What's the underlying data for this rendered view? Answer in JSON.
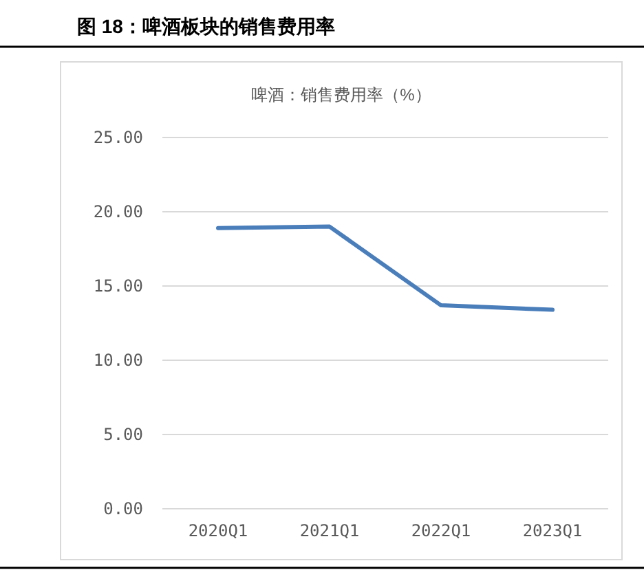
{
  "chart_data": {
    "type": "line",
    "title": "图 18：啤酒板块的销售费用率",
    "subtitle": "啤酒：销售费用率（%）",
    "categories": [
      "2020Q1",
      "2021Q1",
      "2022Q1",
      "2023Q1"
    ],
    "series": [
      {
        "color": "#4a7ebb",
        "values": [
          18.9,
          19.0,
          13.7,
          13.4
        ]
      }
    ],
    "ylim": [
      0,
      25
    ],
    "yticks": [
      {
        "value": 0,
        "label": "0.00"
      },
      {
        "value": 5,
        "label": "5.00"
      },
      {
        "value": 10,
        "label": "10.00"
      },
      {
        "value": 15,
        "label": "15.00"
      },
      {
        "value": 20,
        "label": "20.00"
      },
      {
        "value": 25,
        "label": "25.00"
      }
    ],
    "grid": "y",
    "marker": "none",
    "line_style": "solid"
  }
}
